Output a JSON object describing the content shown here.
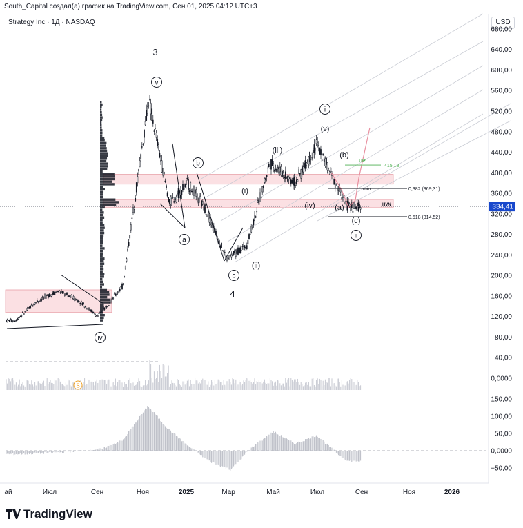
{
  "header": {
    "caption": "South_Capital создал(а) график на TradingView.com, Сен 01, 2025 04:12 UTC+3",
    "symbol": "Strategy Inc · 1Д · NASDAQ",
    "currency": "USD",
    "brand": "TradingView"
  },
  "colors": {
    "candles": "#131722",
    "zone_fill": "#f8c6cc",
    "zone_stroke": "#e8a0a8",
    "channel": "#c9ccd4",
    "last_price_bg": "#1848cc",
    "up_level": "#4caf50",
    "dividend_marker": "#f0a020"
  },
  "chart_data": [
    {
      "type": "line",
      "title": "",
      "price_axis": {
        "ticks": [
          "680,00",
          "640,00",
          "600,00",
          "560,00",
          "520,00",
          "480,00",
          "440,00",
          "400,00",
          "360,00",
          "320,00",
          "280,00",
          "240,00",
          "200,00",
          "160,00",
          "120,00",
          "80,00",
          "40,00",
          "0,0000"
        ],
        "min": 0,
        "max": 690,
        "scale": "linear"
      },
      "time_axis": {
        "ticks": [
          "ай",
          "Июл",
          "Сен",
          "Ноя",
          "2025",
          "Мар",
          "Май",
          "Июл",
          "Сен",
          "Ноя",
          "2026"
        ]
      },
      "last_price": "334,41",
      "series": [
        {
          "name": "",
          "x": [
            "2024-05",
            "2024-06",
            "2024-07",
            "2024-08",
            "2024-09-10",
            "2024-10",
            "2024-11-21",
            "2024-12-20",
            "2025-01",
            "2025-02-10",
            "2025-03-10",
            "2025-04-08",
            "2025-05-10",
            "2025-06",
            "2025-07-15",
            "2025-08",
            "2025-08-29"
          ],
          "y": [
            112,
            150,
            170,
            150,
            120,
            180,
            543,
            340,
            380,
            330,
            232,
            260,
            420,
            380,
            455,
            370,
            334
          ]
        }
      ],
      "annotations": {
        "wave_labels": [
          "3",
          "4",
          "v",
          "iv",
          "a",
          "b",
          "c",
          "i",
          "(i)",
          "(ii)",
          "(iii)",
          "(iv)",
          "(v)",
          "ii",
          "(a)",
          "(b)",
          "(c)"
        ],
        "levels": [
          {
            "label": "min",
            "text": "0,382 (369,31)",
            "value": 369.31
          },
          {
            "label": "",
            "text": "0,618 (314,52)",
            "value": 314.52
          },
          {
            "label": "UP",
            "text": "415,18",
            "value": 415.18
          }
        ],
        "zone_labels": [
          "HVN"
        ],
        "dividend_marker": "S"
      }
    },
    {
      "type": "bar",
      "title": "",
      "axis": {
        "ticks": [
          "150,00",
          "100,00",
          "50,00",
          "0,0000",
          "−50,00"
        ],
        "min": -60,
        "max": 160
      },
      "series": [
        {
          "name": "",
          "x": [
            "2024-05",
            "2024-07",
            "2024-09",
            "2024-10",
            "2024-11-20",
            "2024-12",
            "2025-01",
            "2025-02",
            "2025-03",
            "2025-04",
            "2025-05",
            "2025-06",
            "2025-07",
            "2025-08",
            "2025-08-29"
          ],
          "values": [
            -10,
            -5,
            5,
            30,
            130,
            70,
            15,
            -30,
            -55,
            10,
            55,
            20,
            45,
            -10,
            -30
          ]
        }
      ]
    }
  ]
}
